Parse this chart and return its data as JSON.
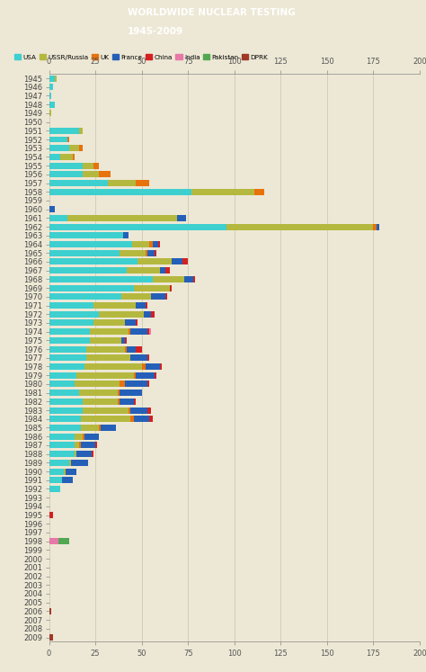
{
  "title_line1": "WORLDWIDE NUCLEAR TESTING",
  "title_line2": "1945-2009",
  "background_color": "#ede8d5",
  "header_color": "#3d6b70",
  "countries": [
    "USA",
    "USSR/Russia",
    "UK",
    "France",
    "China",
    "India",
    "Pakistan",
    "DPRK"
  ],
  "colors": [
    "#3ecfcf",
    "#b5b83e",
    "#e8720c",
    "#2560b8",
    "#d42020",
    "#e878a8",
    "#52a852",
    "#a03828"
  ],
  "years": [
    1945,
    1946,
    1947,
    1948,
    1949,
    1950,
    1951,
    1952,
    1953,
    1954,
    1955,
    1956,
    1957,
    1958,
    1959,
    1960,
    1961,
    1962,
    1963,
    1964,
    1965,
    1966,
    1967,
    1968,
    1969,
    1970,
    1971,
    1972,
    1973,
    1974,
    1975,
    1976,
    1977,
    1978,
    1979,
    1980,
    1981,
    1982,
    1983,
    1984,
    1985,
    1986,
    1987,
    1988,
    1989,
    1990,
    1991,
    1992,
    1993,
    1994,
    1995,
    1996,
    1997,
    1998,
    1999,
    2000,
    2001,
    2002,
    2003,
    2004,
    2005,
    2006,
    2007,
    2008,
    2009
  ],
  "data": {
    "USA": [
      3,
      2,
      1,
      3,
      0,
      0,
      16,
      10,
      11,
      6,
      18,
      18,
      32,
      77,
      0,
      0,
      10,
      96,
      40,
      45,
      38,
      48,
      42,
      56,
      46,
      39,
      24,
      27,
      24,
      22,
      22,
      20,
      20,
      19,
      15,
      14,
      16,
      18,
      18,
      17,
      17,
      14,
      14,
      14,
      11,
      8,
      7,
      6,
      0,
      0,
      0,
      0,
      0,
      0,
      0,
      0,
      0,
      0,
      0,
      0,
      0,
      0,
      0,
      0,
      0
    ],
    "USSR/Russia": [
      1,
      0,
      0,
      0,
      1,
      0,
      2,
      0,
      5,
      7,
      6,
      9,
      15,
      34,
      0,
      0,
      59,
      79,
      0,
      9,
      14,
      18,
      18,
      17,
      19,
      16,
      23,
      24,
      17,
      21,
      17,
      21,
      24,
      31,
      31,
      24,
      21,
      19,
      25,
      27,
      10,
      4,
      2,
      1,
      1,
      1,
      0,
      0,
      0,
      0,
      0,
      0,
      0,
      0,
      0,
      0,
      0,
      0,
      0,
      0,
      0,
      0,
      0,
      0,
      0
    ],
    "UK": [
      0,
      0,
      0,
      0,
      0,
      0,
      0,
      1,
      2,
      1,
      3,
      6,
      7,
      5,
      0,
      0,
      0,
      2,
      0,
      2,
      1,
      0,
      0,
      0,
      0,
      0,
      0,
      0,
      0,
      1,
      0,
      1,
      0,
      2,
      1,
      3,
      1,
      1,
      1,
      2,
      1,
      1,
      1,
      0,
      0,
      0,
      0,
      0,
      0,
      0,
      0,
      0,
      0,
      0,
      0,
      0,
      0,
      0,
      0,
      0,
      0,
      0,
      0,
      0,
      0
    ],
    "France": [
      0,
      0,
      0,
      0,
      0,
      0,
      0,
      0,
      0,
      0,
      0,
      0,
      0,
      0,
      0,
      3,
      5,
      1,
      3,
      3,
      4,
      6,
      3,
      5,
      0,
      8,
      5,
      4,
      6,
      9,
      2,
      5,
      9,
      8,
      10,
      12,
      12,
      8,
      9,
      8,
      8,
      8,
      8,
      8,
      9,
      6,
      6,
      0,
      0,
      0,
      0,
      0,
      0,
      0,
      0,
      0,
      0,
      0,
      0,
      0,
      0,
      0,
      0,
      0,
      0
    ],
    "China": [
      0,
      0,
      0,
      0,
      0,
      0,
      0,
      0,
      0,
      0,
      0,
      0,
      0,
      0,
      0,
      0,
      0,
      0,
      0,
      1,
      1,
      3,
      2,
      1,
      1,
      1,
      1,
      2,
      1,
      1,
      1,
      3,
      1,
      1,
      1,
      1,
      0,
      1,
      2,
      2,
      0,
      0,
      1,
      1,
      0,
      0,
      0,
      0,
      0,
      0,
      2,
      0,
      0,
      0,
      0,
      0,
      0,
      0,
      0,
      0,
      0,
      0,
      0,
      0,
      0
    ],
    "India": [
      0,
      0,
      0,
      0,
      0,
      0,
      0,
      0,
      0,
      0,
      0,
      0,
      0,
      0,
      0,
      0,
      0,
      0,
      0,
      0,
      0,
      0,
      0,
      0,
      0,
      0,
      0,
      0,
      0,
      1,
      0,
      0,
      0,
      0,
      0,
      0,
      0,
      0,
      0,
      0,
      0,
      0,
      0,
      0,
      0,
      0,
      0,
      0,
      0,
      0,
      0,
      0,
      0,
      5,
      0,
      0,
      0,
      0,
      0,
      0,
      0,
      0,
      0,
      0,
      0
    ],
    "Pakistan": [
      0,
      0,
      0,
      0,
      0,
      0,
      0,
      0,
      0,
      0,
      0,
      0,
      0,
      0,
      0,
      0,
      0,
      0,
      0,
      0,
      0,
      0,
      0,
      0,
      0,
      0,
      0,
      0,
      0,
      0,
      0,
      0,
      0,
      0,
      0,
      0,
      0,
      0,
      0,
      0,
      0,
      0,
      0,
      0,
      0,
      0,
      0,
      0,
      0,
      0,
      0,
      0,
      0,
      6,
      0,
      0,
      0,
      0,
      0,
      0,
      0,
      0,
      0,
      0,
      0
    ],
    "DPRK": [
      0,
      0,
      0,
      0,
      0,
      0,
      0,
      0,
      0,
      0,
      0,
      0,
      0,
      0,
      0,
      0,
      0,
      0,
      0,
      0,
      0,
      0,
      0,
      0,
      0,
      0,
      0,
      0,
      0,
      0,
      0,
      0,
      0,
      0,
      0,
      0,
      0,
      0,
      0,
      0,
      0,
      0,
      0,
      0,
      0,
      0,
      0,
      0,
      0,
      0,
      0,
      0,
      0,
      0,
      0,
      0,
      0,
      0,
      0,
      0,
      0,
      1,
      0,
      0,
      2
    ]
  },
  "xlim": [
    0,
    200
  ],
  "xticks": [
    0,
    25,
    50,
    75,
    100,
    125,
    150,
    175,
    200
  ]
}
